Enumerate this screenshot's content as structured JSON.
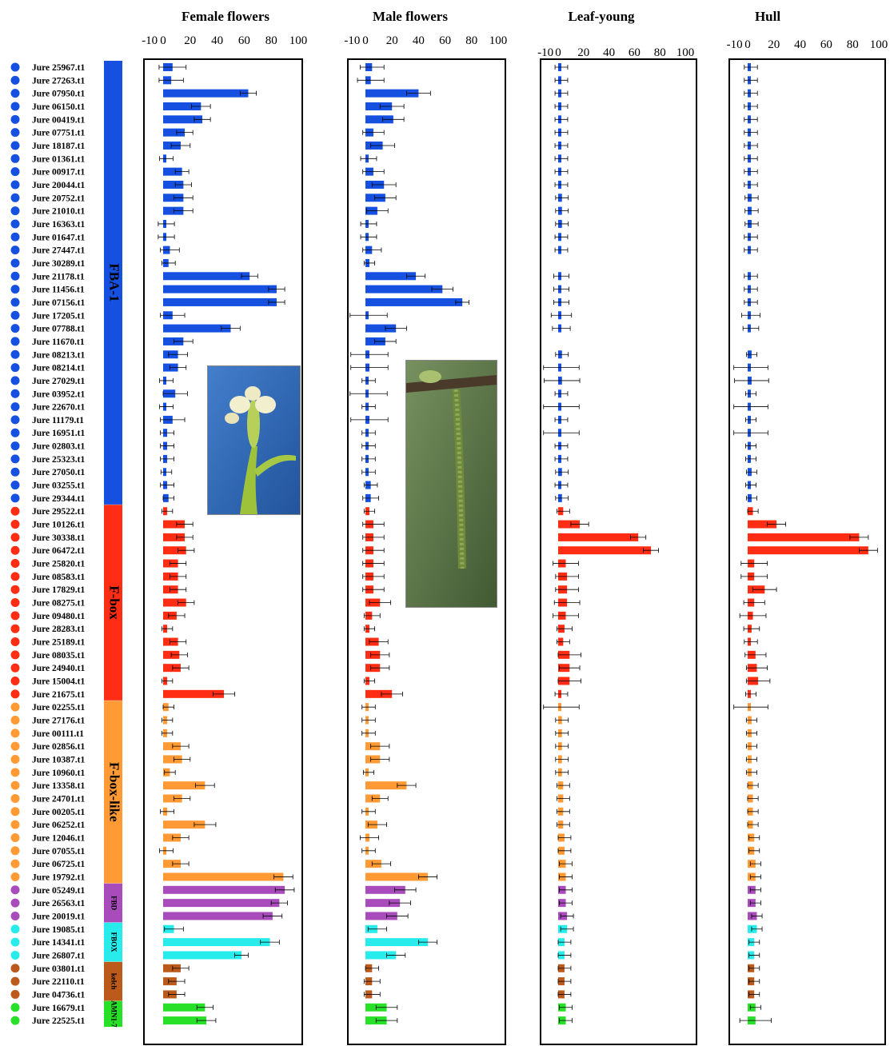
{
  "chart_data": {
    "type": "bar",
    "genes": [
      "Jure 25967.t1",
      "Jure 27263.t1",
      "Jure 07950.t1",
      "Jure 06150.t1",
      "Jure 00419.t1",
      "Jure 07751.t1",
      "Jure 18187.t1",
      "Jure 01361.t1",
      "Jure 00917.t1",
      "Jure 20044.t1",
      "Jure 20752.t1",
      "Jure 21010.t1",
      "Jure 16363.t1",
      "Jure 01647.t1",
      "Jure 27447.t1",
      "Jure 30289.t1",
      "Jure 21178.t1",
      "Jure 11456.t1",
      "Jure 07156.t1",
      "Jure 17205.t1",
      "Jure 07788.t1",
      "Jure 11670.t1",
      "Jure 08213.t1",
      "Jure 08214.t1",
      "Jure 27029.t1",
      "Jure 03952.t1",
      "Jure 22670.t1",
      "Jure 11179.t1",
      "Jure 16951.t1",
      "Jure 02803.t1",
      "Jure 25323.t1",
      "Jure 27050.t1",
      "Jure 03255.t1",
      "Jure 29344.t1",
      "Jure 29522.t1",
      "Jure 10126.t1",
      "Jure 30338.t1",
      "Jure 06472.t1",
      "Jure 25820.t1",
      "Jure 08583.t1",
      "Jure 17829.t1",
      "Jure 08275.t1",
      "Jure 09480.t1",
      "Jure 28283.t1",
      "Jure 25189.t1",
      "Jure 08035.t1",
      "Jure 24940.t1",
      "Jure 15004.t1",
      "Jure 21675.t1",
      "Jure 02255.t1",
      "Jure 27176.t1",
      "Jure 00111.t1",
      "Jure 02856.t1",
      "Jure 10387.t1",
      "Jure 10960.t1",
      "Jure 13358.t1",
      "Jure 24701.t1",
      "Jure 00205.t1",
      "Jure 06252.t1",
      "Jure 12046.t1",
      "Jure 07055.t1",
      "Jure 06725.t1",
      "Jure 19792.t1",
      "Jure 05249.t1",
      "Jure 26563.t1",
      "Jure 20019.t1",
      "Jure 19085.t1",
      "Jure 14341.t1",
      "Jure 26807.t1",
      "Jure 03801.t1",
      "Jure 22110.t1",
      "Jure 04736.t1",
      "Jure 16679.t1",
      "Jure 22525.t1"
    ],
    "groups": [
      {
        "name": "FBA-1",
        "count": 34,
        "color": "#1550e0"
      },
      {
        "name": "F-box",
        "count": 15,
        "color": "#ff2d14"
      },
      {
        "name": "F-box-like",
        "count": 14,
        "color": "#ff9a35"
      },
      {
        "name": "FBD",
        "count": 3,
        "color": "#a84cbc"
      },
      {
        "name": "FBOX",
        "count": 3,
        "color": "#28ecec"
      },
      {
        "name": "kelch",
        "count": 3,
        "color": "#bc5a1c"
      },
      {
        "name": "AMN1-7",
        "count": 2,
        "color": "#28e028"
      }
    ],
    "xlim": [
      -10,
      100
    ],
    "ticks": [
      -10,
      0,
      20,
      40,
      60,
      80,
      100
    ],
    "panels": [
      {
        "title": "Female flowers",
        "values": [
          7,
          6,
          63,
          28,
          29,
          16,
          13,
          2,
          14,
          15,
          15,
          15,
          0,
          0,
          5,
          4,
          64,
          84,
          84,
          7,
          50,
          15,
          11,
          11,
          2,
          9,
          2,
          7,
          3,
          3,
          3,
          2,
          3,
          4,
          3,
          16,
          16,
          17,
          11,
          11,
          11,
          17,
          10,
          3,
          11,
          12,
          13,
          3,
          45,
          4,
          3,
          3,
          13,
          14,
          5,
          31,
          14,
          3,
          31,
          13,
          2,
          13,
          89,
          90,
          86,
          81,
          8,
          79,
          58,
          13,
          10,
          10,
          31,
          32
        ],
        "errors": [
          10,
          9,
          6,
          7,
          6,
          6,
          7,
          5,
          5,
          6,
          7,
          7,
          6,
          6,
          7,
          5,
          6,
          6,
          6,
          9,
          7,
          7,
          7,
          6,
          5,
          9,
          5,
          9,
          5,
          5,
          5,
          4,
          5,
          4,
          4,
          6,
          6,
          6,
          6,
          6,
          6,
          6,
          6,
          4,
          6,
          6,
          6,
          4,
          8,
          4,
          4,
          4,
          6,
          6,
          4,
          7,
          6,
          5,
          8,
          6,
          5,
          6,
          7,
          7,
          6,
          7,
          7,
          7,
          5,
          6,
          6,
          6,
          6,
          7
        ]
      },
      {
        "title": "Male flowers",
        "values": [
          5,
          4,
          40,
          20,
          21,
          6,
          13,
          2,
          6,
          14,
          15,
          9,
          0,
          0,
          5,
          3,
          38,
          58,
          73,
          2,
          23,
          15,
          3,
          3,
          2,
          2,
          2,
          3,
          2,
          2,
          2,
          2,
          4,
          4,
          3,
          6,
          6,
          6,
          6,
          6,
          6,
          11,
          5,
          3,
          10,
          11,
          11,
          3,
          20,
          2,
          1,
          1,
          11,
          11,
          2,
          31,
          11,
          2,
          9,
          3,
          2,
          12,
          47,
          30,
          26,
          24,
          9,
          47,
          23,
          5,
          5,
          5,
          16,
          16
        ],
        "errors": [
          9,
          10,
          9,
          9,
          8,
          8,
          9,
          6,
          8,
          9,
          8,
          8,
          6,
          6,
          7,
          4,
          7,
          8,
          5,
          14,
          8,
          8,
          14,
          14,
          5,
          14,
          5,
          14,
          5,
          5,
          5,
          5,
          5,
          6,
          4,
          8,
          8,
          8,
          8,
          8,
          8,
          8,
          6,
          4,
          7,
          7,
          7,
          4,
          8,
          5,
          5,
          5,
          7,
          7,
          4,
          7,
          6,
          5,
          7,
          7,
          5,
          7,
          7,
          8,
          8,
          8,
          7,
          7,
          7,
          5,
          6,
          6,
          8,
          8
        ]
      },
      {
        "title": "Leaf-young",
        "values": [
          2,
          2,
          2,
          2,
          2,
          2,
          2,
          2,
          2,
          2,
          3,
          3,
          3,
          2,
          2,
          null,
          2,
          2,
          2,
          1,
          1,
          null,
          3,
          2,
          3,
          2,
          2,
          2,
          2,
          2,
          2,
          3,
          2,
          3,
          4,
          17,
          63,
          73,
          6,
          7,
          7,
          7,
          6,
          5,
          4,
          9,
          9,
          9,
          2,
          2,
          3,
          3,
          3,
          3,
          3,
          4,
          4,
          4,
          4,
          5,
          5,
          6,
          6,
          6,
          6,
          7,
          7,
          5,
          5,
          5,
          5,
          5,
          6,
          6
        ],
        "errors": [
          5,
          5,
          5,
          5,
          5,
          5,
          5,
          5,
          5,
          5,
          5,
          5,
          5,
          5,
          5,
          null,
          6,
          6,
          6,
          8,
          7,
          null,
          5,
          14,
          14,
          5,
          14,
          5,
          14,
          5,
          5,
          5,
          5,
          5,
          5,
          7,
          6,
          6,
          10,
          9,
          9,
          10,
          10,
          6,
          5,
          9,
          8,
          9,
          5,
          14,
          5,
          5,
          5,
          5,
          5,
          5,
          5,
          5,
          5,
          5,
          5,
          5,
          5,
          5,
          5,
          5,
          5,
          5,
          5,
          5,
          5,
          5,
          5,
          5
        ]
      },
      {
        "title": "Hull",
        "values": [
          2,
          2,
          2,
          2,
          2,
          2,
          2,
          2,
          2,
          2,
          3,
          3,
          3,
          2,
          2,
          null,
          2,
          2,
          2,
          1,
          1,
          null,
          3,
          2,
          3,
          2,
          2,
          2,
          2,
          2,
          2,
          3,
          2,
          3,
          4,
          22,
          85,
          92,
          5,
          5,
          13,
          5,
          4,
          3,
          2,
          6,
          7,
          8,
          2,
          2,
          3,
          3,
          3,
          3,
          3,
          4,
          4,
          4,
          4,
          5,
          5,
          6,
          6,
          6,
          6,
          7,
          7,
          5,
          5,
          5,
          5,
          5,
          6,
          6
        ],
        "errors": [
          5,
          5,
          5,
          5,
          5,
          5,
          5,
          5,
          5,
          5,
          5,
          5,
          5,
          5,
          5,
          null,
          5,
          5,
          5,
          7,
          6,
          null,
          4,
          13,
          13,
          4,
          13,
          4,
          13,
          4,
          4,
          4,
          4,
          4,
          4,
          7,
          7,
          7,
          10,
          10,
          9,
          8,
          10,
          6,
          5,
          8,
          8,
          9,
          4,
          13,
          4,
          4,
          4,
          4,
          4,
          4,
          4,
          4,
          4,
          4,
          4,
          4,
          4,
          4,
          4,
          4,
          4,
          4,
          4,
          4,
          4,
          4,
          4,
          12
        ]
      }
    ],
    "grid": false,
    "legend": "none"
  }
}
